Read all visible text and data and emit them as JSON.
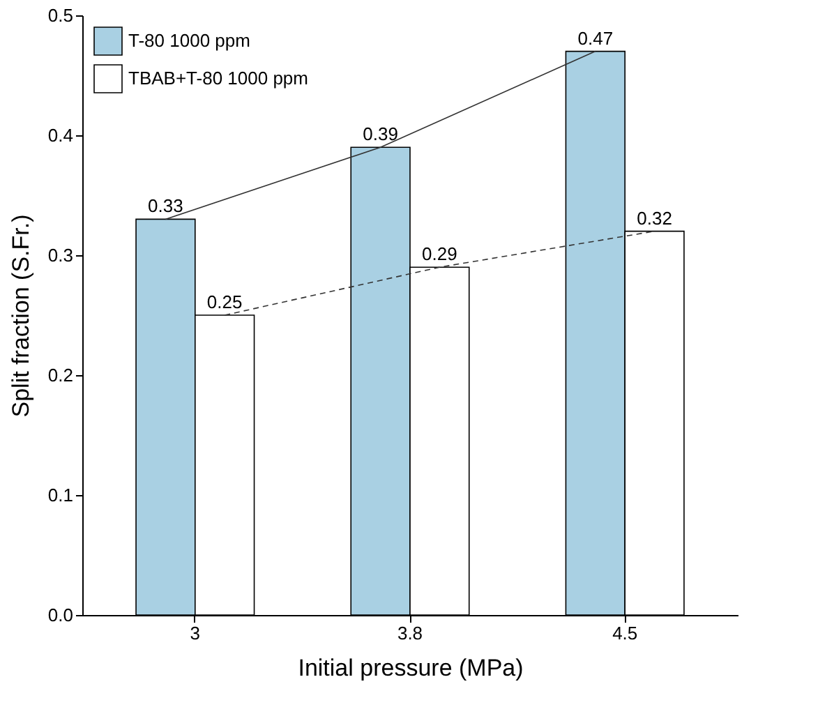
{
  "chart_data": {
    "type": "bar",
    "xlabel": "Initial pressure (MPa)",
    "ylabel": "Split fraction (S.Fr.)",
    "categories": [
      "3",
      "3.8",
      "4.5"
    ],
    "series": [
      {
        "name": "T-80 1000 ppm",
        "color": "#a9d0e3",
        "values": [
          0.33,
          0.39,
          0.47
        ],
        "line_style": "solid"
      },
      {
        "name": "TBAB+T-80 1000 ppm",
        "color": "#ffffff",
        "values": [
          0.25,
          0.29,
          0.32
        ],
        "line_style": "dashed"
      }
    ],
    "ylim": [
      0,
      0.5
    ],
    "yticks": [
      {
        "value": 0,
        "label": "0.0"
      },
      {
        "value": 0.1,
        "label": "0.1"
      },
      {
        "value": 0.2,
        "label": "0.2"
      },
      {
        "value": 0.3,
        "label": "0.3"
      },
      {
        "value": 0.4,
        "label": "0.4"
      },
      {
        "value": 0.5,
        "label": "0.5"
      }
    ],
    "data_labels": true,
    "legend": "top left",
    "grid": false
  }
}
